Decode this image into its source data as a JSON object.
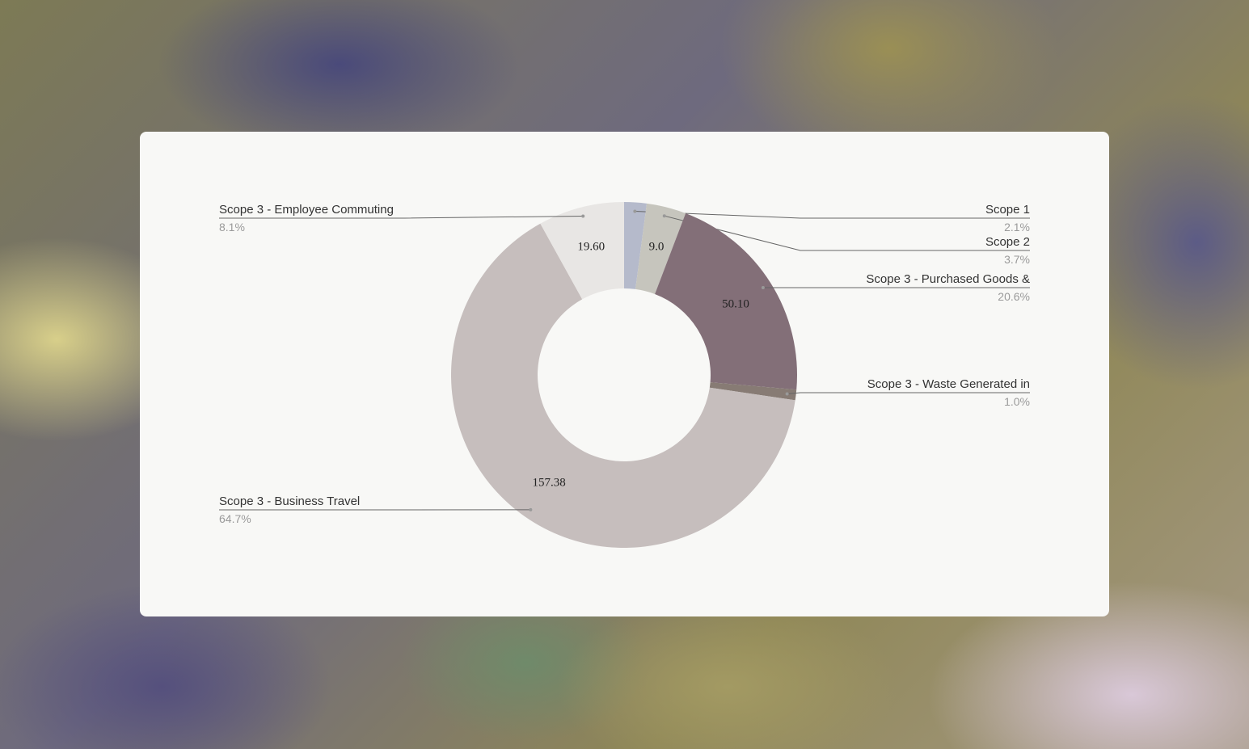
{
  "chart_data": {
    "type": "donut",
    "categories": [
      "Scope 1",
      "Scope 2",
      "Scope 3 - Purchased Goods &",
      "Scope 3 - Waste Generated in",
      "Scope 3 - Business Travel",
      "Scope 3 - Employee Commuting"
    ],
    "values": [
      5.1,
      9.0,
      50.1,
      2.4,
      157.38,
      19.6
    ],
    "value_labels": [
      null,
      "9.0",
      "50.10",
      null,
      "157.38",
      "19.60"
    ],
    "percent_labels": [
      "2.1%",
      "3.7%",
      "20.6%",
      "1.0%",
      "64.7%",
      "8.1%"
    ],
    "colors": [
      "#b5bacb",
      "#c6c5bd",
      "#836f78",
      "#877b74",
      "#c6bebd",
      "#e8e6e4"
    ]
  }
}
